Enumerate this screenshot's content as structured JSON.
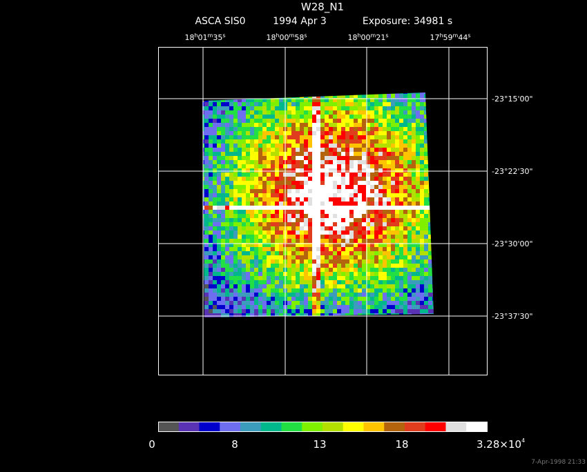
{
  "title": "W28_N1",
  "subtitle": [
    "ASCA SIS0",
    "1994 Apr  3",
    "Exposure: 34981 s"
  ],
  "ra_labels": [
    [
      "18",
      "h",
      "01",
      "m",
      "35",
      "s"
    ],
    [
      "18",
      "h",
      "00",
      "m",
      "58",
      "s"
    ],
    [
      "18",
      "h",
      "00",
      "m",
      "21",
      "s"
    ],
    [
      "17",
      "h",
      "59",
      "m",
      "44",
      "s"
    ]
  ],
  "dec_labels": [
    "-23°15'00\"",
    "-23°22'30\"",
    "-23°30'00\"",
    "-23°37'30\""
  ],
  "colorbar": {
    "colors": [
      "#555555",
      "#5a32b4",
      "#0000cc",
      "#6e6ef0",
      "#3c9cbc",
      "#00b88c",
      "#22e044",
      "#7ef000",
      "#b4e000",
      "#ffff00",
      "#ffc400",
      "#b4640c",
      "#e03c1e",
      "#ff0000",
      "#e0e0e0",
      "#ffffff"
    ],
    "labels": [
      "0",
      "8",
      "13",
      "18"
    ],
    "max_label": {
      "mantissa": "3.28×10",
      "exponent": "4"
    }
  },
  "timestamp": "7-Apr-1998 21:33"
}
